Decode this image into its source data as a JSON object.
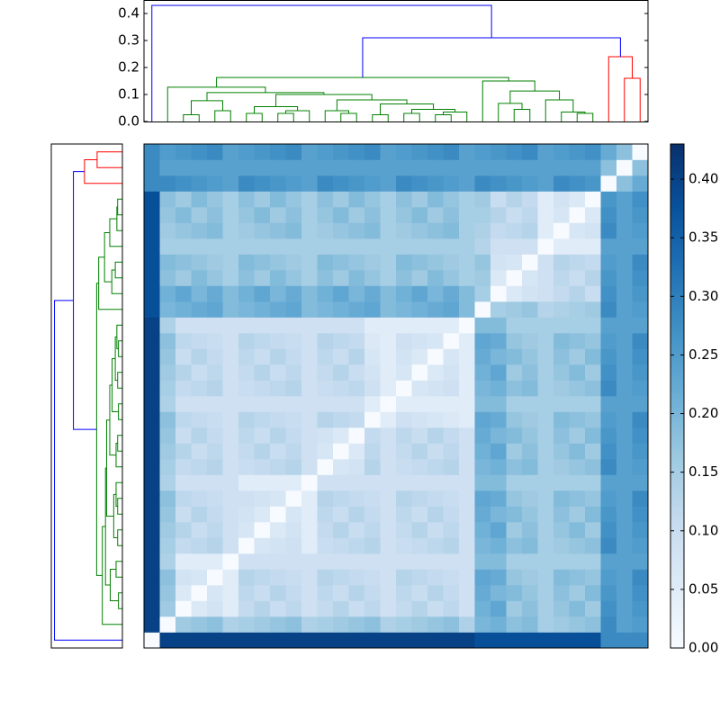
{
  "chart_data": {
    "type": "heatmap",
    "cmap": "Blues",
    "clim": [
      0,
      0.43
    ],
    "colorbar_ticks": [
      {
        "value": 0,
        "label": "0.00"
      },
      0.05,
      {
        "value": 0.1,
        "label": "0.10"
      },
      0.15,
      {
        "value": 0.2,
        "label": "0.20"
      },
      0.25,
      {
        "value": 0.3,
        "label": "0.30"
      },
      0.35,
      {
        "value": 0.4,
        "label": "0.40"
      }
    ],
    "dendrogram": {
      "ylim": [
        0,
        0.45
      ],
      "yticks": [
        {
          "value": 0,
          "label": "0.0"
        },
        0.1,
        0.2,
        0.3,
        0.4
      ],
      "linkage": [
        {
          "left": 2,
          "right": 3,
          "height": 0.025,
          "color": "#008000"
        },
        {
          "left": 4,
          "right": 5,
          "height": 0.04,
          "color": "#008000"
        },
        {
          "left": 32,
          "right": 33,
          "height": 0.077,
          "color": "#008000"
        },
        {
          "left": 6,
          "right": 7,
          "height": 0.03,
          "color": "#008000"
        },
        {
          "left": 8,
          "right": 9,
          "height": 0.03,
          "color": "#008000"
        },
        {
          "left": 36,
          "right": 10,
          "height": 0.04,
          "color": "#008000"
        },
        {
          "left": 35,
          "right": 37,
          "height": 0.055,
          "color": "#008000"
        },
        {
          "left": 12,
          "right": 13,
          "height": 0.03,
          "color": "#008000"
        },
        {
          "left": 11,
          "right": 39,
          "height": 0.04,
          "color": "#008000"
        },
        {
          "left": 14,
          "right": 15,
          "height": 0.025,
          "color": "#008000"
        },
        {
          "left": 16,
          "right": 17,
          "height": 0.03,
          "color": "#008000"
        },
        {
          "left": 18,
          "right": 19,
          "height": 0.025,
          "color": "#008000"
        },
        {
          "left": 43,
          "right": 20,
          "height": 0.035,
          "color": "#008000"
        },
        {
          "left": 42,
          "right": 44,
          "height": 0.045,
          "color": "#008000"
        },
        {
          "left": 41,
          "right": 45,
          "height": 0.065,
          "color": "#008000"
        },
        {
          "left": 40,
          "right": 46,
          "height": 0.08,
          "color": "#008000"
        },
        {
          "left": 38,
          "right": 47,
          "height": 0.1,
          "color": "#008000"
        },
        {
          "left": 34,
          "right": 48,
          "height": 0.107,
          "color": "#008000"
        },
        {
          "left": 1,
          "right": 49,
          "height": 0.127,
          "color": "#008000"
        },
        {
          "left": 23,
          "right": 24,
          "height": 0.045,
          "color": "#008000"
        },
        {
          "left": 22,
          "right": 51,
          "height": 0.067,
          "color": "#008000"
        },
        {
          "left": 27,
          "right": 28,
          "height": 0.03,
          "color": "#008000"
        },
        {
          "left": 26,
          "right": 53,
          "height": 0.035,
          "color": "#008000"
        },
        {
          "left": 25,
          "right": 54,
          "height": 0.08,
          "color": "#008000"
        },
        {
          "left": 52,
          "right": 55,
          "height": 0.113,
          "color": "#008000"
        },
        {
          "left": 21,
          "right": 56,
          "height": 0.15,
          "color": "#008000"
        },
        {
          "left": 50,
          "right": 57,
          "height": 0.163,
          "color": "#008000"
        },
        {
          "left": 30,
          "right": 31,
          "height": 0.16,
          "color": "#ff0000"
        },
        {
          "left": 29,
          "right": 59,
          "height": 0.24,
          "color": "#ff0000"
        },
        {
          "left": 58,
          "right": 60,
          "height": 0.31,
          "color": "#0000ff"
        },
        {
          "left": 0,
          "right": 61,
          "height": 0.43,
          "color": "#0000ff"
        }
      ]
    },
    "matrix": [
      [
        0,
        0.4,
        0.4,
        0.4,
        0.4,
        0.4,
        0.4,
        0.4,
        0.4,
        0.4,
        0.4,
        0.4,
        0.4,
        0.4,
        0.4,
        0.4,
        0.4,
        0.4,
        0.4,
        0.4,
        0.4,
        0.38,
        0.38,
        0.38,
        0.38,
        0.38,
        0.38,
        0.38,
        0.38,
        0.28,
        0.28,
        0.28
      ],
      [
        0.4,
        0,
        0.16,
        0.17,
        0.18,
        0.14,
        0.15,
        0.16,
        0.17,
        0.18,
        0.14,
        0.15,
        0.16,
        0.17,
        0.18,
        0.14,
        0.15,
        0.16,
        0.17,
        0.18,
        0.14,
        0.2,
        0.21,
        0.18,
        0.19,
        0.15,
        0.16,
        0.17,
        0.18,
        0.28,
        0.24,
        0.25
      ],
      [
        0.4,
        0.16,
        0,
        0.06,
        0.08,
        0.05,
        0.11,
        0.13,
        0.1,
        0.12,
        0.09,
        0.11,
        0.13,
        0.1,
        0.12,
        0.09,
        0.11,
        0.13,
        0.1,
        0.12,
        0.09,
        0.21,
        0.23,
        0.16,
        0.18,
        0.15,
        0.17,
        0.19,
        0.16,
        0.27,
        0.24,
        0.26
      ],
      [
        0.4,
        0.17,
        0.06,
        0,
        0.07,
        0.05,
        0.12,
        0.1,
        0.13,
        0.11,
        0.09,
        0.12,
        0.1,
        0.13,
        0.11,
        0.09,
        0.12,
        0.1,
        0.13,
        0.11,
        0.09,
        0.22,
        0.2,
        0.19,
        0.17,
        0.15,
        0.18,
        0.16,
        0.19,
        0.26,
        0.24,
        0.27
      ],
      [
        0.4,
        0.18,
        0.08,
        0.07,
        0,
        0.05,
        0.13,
        0.12,
        0.11,
        0.1,
        0.09,
        0.13,
        0.12,
        0.11,
        0.1,
        0.09,
        0.13,
        0.12,
        0.11,
        0.1,
        0.09,
        0.23,
        0.22,
        0.17,
        0.16,
        0.15,
        0.19,
        0.18,
        0.17,
        0.25,
        0.24,
        0.28
      ],
      [
        0.4,
        0.14,
        0.05,
        0.05,
        0.05,
        0,
        0.09,
        0.09,
        0.09,
        0.09,
        0.09,
        0.09,
        0.09,
        0.09,
        0.09,
        0.09,
        0.09,
        0.09,
        0.09,
        0.09,
        0.09,
        0.19,
        0.19,
        0.15,
        0.15,
        0.15,
        0.15,
        0.15,
        0.15,
        0.24,
        0.24,
        0.24
      ],
      [
        0.4,
        0.15,
        0.11,
        0.12,
        0.13,
        0.09,
        0,
        0.07,
        0.08,
        0.09,
        0.05,
        0.1,
        0.11,
        0.12,
        0.13,
        0.09,
        0.1,
        0.11,
        0.12,
        0.13,
        0.09,
        0.2,
        0.21,
        0.18,
        0.19,
        0.15,
        0.16,
        0.17,
        0.18,
        0.28,
        0.24,
        0.25
      ],
      [
        0.4,
        0.16,
        0.13,
        0.1,
        0.12,
        0.09,
        0.07,
        0,
        0.06,
        0.08,
        0.05,
        0.11,
        0.13,
        0.1,
        0.12,
        0.09,
        0.11,
        0.13,
        0.1,
        0.12,
        0.09,
        0.21,
        0.23,
        0.16,
        0.18,
        0.15,
        0.17,
        0.19,
        0.16,
        0.27,
        0.24,
        0.26
      ],
      [
        0.4,
        0.17,
        0.1,
        0.13,
        0.11,
        0.09,
        0.08,
        0.06,
        0,
        0.07,
        0.05,
        0.12,
        0.1,
        0.13,
        0.11,
        0.09,
        0.12,
        0.1,
        0.13,
        0.11,
        0.09,
        0.22,
        0.2,
        0.19,
        0.17,
        0.15,
        0.18,
        0.16,
        0.19,
        0.26,
        0.24,
        0.27
      ],
      [
        0.4,
        0.18,
        0.12,
        0.11,
        0.1,
        0.09,
        0.09,
        0.08,
        0.07,
        0,
        0.05,
        0.13,
        0.12,
        0.11,
        0.1,
        0.09,
        0.13,
        0.12,
        0.11,
        0.1,
        0.09,
        0.23,
        0.22,
        0.17,
        0.16,
        0.15,
        0.19,
        0.18,
        0.17,
        0.25,
        0.24,
        0.28
      ],
      [
        0.4,
        0.14,
        0.09,
        0.09,
        0.09,
        0.09,
        0.05,
        0.05,
        0.05,
        0.05,
        0,
        0.09,
        0.09,
        0.09,
        0.09,
        0.09,
        0.09,
        0.09,
        0.09,
        0.09,
        0.09,
        0.19,
        0.19,
        0.15,
        0.15,
        0.15,
        0.15,
        0.15,
        0.15,
        0.24,
        0.24,
        0.24
      ],
      [
        0.4,
        0.15,
        0.11,
        0.12,
        0.13,
        0.09,
        0.1,
        0.11,
        0.12,
        0.13,
        0.09,
        0,
        0.07,
        0.08,
        0.13,
        0.09,
        0.1,
        0.11,
        0.12,
        0.13,
        0.09,
        0.2,
        0.21,
        0.18,
        0.19,
        0.15,
        0.16,
        0.17,
        0.18,
        0.28,
        0.24,
        0.25
      ],
      [
        0.4,
        0.16,
        0.13,
        0.1,
        0.12,
        0.09,
        0.11,
        0.13,
        0.1,
        0.12,
        0.09,
        0.07,
        0,
        0.06,
        0.12,
        0.09,
        0.11,
        0.13,
        0.1,
        0.12,
        0.09,
        0.21,
        0.23,
        0.16,
        0.18,
        0.15,
        0.17,
        0.19,
        0.16,
        0.27,
        0.24,
        0.26
      ],
      [
        0.4,
        0.17,
        0.1,
        0.13,
        0.11,
        0.09,
        0.12,
        0.1,
        0.13,
        0.11,
        0.09,
        0.08,
        0.06,
        0,
        0.11,
        0.09,
        0.12,
        0.1,
        0.13,
        0.11,
        0.09,
        0.22,
        0.2,
        0.19,
        0.17,
        0.15,
        0.18,
        0.16,
        0.19,
        0.26,
        0.24,
        0.27
      ],
      [
        0.4,
        0.18,
        0.12,
        0.11,
        0.1,
        0.09,
        0.13,
        0.12,
        0.11,
        0.1,
        0.09,
        0.13,
        0.12,
        0.11,
        0,
        0.05,
        0.09,
        0.08,
        0.07,
        0.06,
        0.05,
        0.23,
        0.22,
        0.17,
        0.16,
        0.15,
        0.19,
        0.18,
        0.17,
        0.25,
        0.24,
        0.28
      ],
      [
        0.4,
        0.14,
        0.09,
        0.09,
        0.09,
        0.09,
        0.09,
        0.09,
        0.09,
        0.09,
        0.09,
        0.09,
        0.09,
        0.09,
        0.05,
        0,
        0.05,
        0.05,
        0.05,
        0.05,
        0.05,
        0.19,
        0.19,
        0.15,
        0.15,
        0.15,
        0.15,
        0.15,
        0.15,
        0.24,
        0.24,
        0.24
      ],
      [
        0.4,
        0.15,
        0.11,
        0.12,
        0.13,
        0.09,
        0.1,
        0.11,
        0.12,
        0.13,
        0.09,
        0.1,
        0.11,
        0.12,
        0.09,
        0.05,
        0,
        0.07,
        0.08,
        0.09,
        0.05,
        0.2,
        0.21,
        0.18,
        0.19,
        0.15,
        0.16,
        0.17,
        0.18,
        0.28,
        0.24,
        0.25
      ],
      [
        0.4,
        0.16,
        0.13,
        0.1,
        0.12,
        0.09,
        0.11,
        0.13,
        0.1,
        0.12,
        0.09,
        0.11,
        0.13,
        0.1,
        0.08,
        0.05,
        0.07,
        0,
        0.06,
        0.08,
        0.05,
        0.21,
        0.23,
        0.16,
        0.18,
        0.15,
        0.17,
        0.19,
        0.16,
        0.27,
        0.24,
        0.26
      ],
      [
        0.4,
        0.17,
        0.1,
        0.13,
        0.11,
        0.09,
        0.12,
        0.1,
        0.13,
        0.11,
        0.09,
        0.12,
        0.1,
        0.13,
        0.07,
        0.05,
        0.08,
        0.06,
        0,
        0.07,
        0.05,
        0.22,
        0.2,
        0.19,
        0.17,
        0.15,
        0.18,
        0.16,
        0.19,
        0.26,
        0.24,
        0.27
      ],
      [
        0.4,
        0.18,
        0.12,
        0.11,
        0.1,
        0.09,
        0.13,
        0.12,
        0.11,
        0.1,
        0.09,
        0.13,
        0.12,
        0.11,
        0.06,
        0.05,
        0.09,
        0.08,
        0.07,
        0,
        0.05,
        0.23,
        0.22,
        0.17,
        0.16,
        0.15,
        0.19,
        0.18,
        0.17,
        0.25,
        0.24,
        0.28
      ],
      [
        0.4,
        0.14,
        0.09,
        0.09,
        0.09,
        0.09,
        0.09,
        0.09,
        0.09,
        0.09,
        0.09,
        0.09,
        0.09,
        0.09,
        0.05,
        0.05,
        0.05,
        0.05,
        0.05,
        0.05,
        0,
        0.19,
        0.19,
        0.15,
        0.15,
        0.15,
        0.15,
        0.15,
        0.15,
        0.24,
        0.24,
        0.24
      ],
      [
        0.38,
        0.2,
        0.21,
        0.22,
        0.23,
        0.19,
        0.2,
        0.21,
        0.22,
        0.23,
        0.19,
        0.2,
        0.21,
        0.22,
        0.23,
        0.19,
        0.2,
        0.21,
        0.22,
        0.23,
        0.19,
        0,
        0.15,
        0.16,
        0.17,
        0.13,
        0.14,
        0.15,
        0.16,
        0.28,
        0.24,
        0.25
      ],
      [
        0.38,
        0.21,
        0.23,
        0.2,
        0.22,
        0.19,
        0.21,
        0.23,
        0.2,
        0.22,
        0.19,
        0.21,
        0.23,
        0.2,
        0.22,
        0.19,
        0.21,
        0.23,
        0.2,
        0.22,
        0.19,
        0.15,
        0,
        0.06,
        0.08,
        0.09,
        0.11,
        0.13,
        0.1,
        0.27,
        0.24,
        0.26
      ],
      [
        0.38,
        0.18,
        0.16,
        0.19,
        0.17,
        0.15,
        0.18,
        0.16,
        0.19,
        0.17,
        0.15,
        0.18,
        0.16,
        0.19,
        0.17,
        0.15,
        0.18,
        0.16,
        0.19,
        0.17,
        0.15,
        0.16,
        0.06,
        0,
        0.07,
        0.09,
        0.12,
        0.1,
        0.13,
        0.26,
        0.24,
        0.27
      ],
      [
        0.38,
        0.19,
        0.18,
        0.17,
        0.16,
        0.15,
        0.19,
        0.18,
        0.17,
        0.16,
        0.15,
        0.19,
        0.18,
        0.17,
        0.16,
        0.15,
        0.19,
        0.18,
        0.17,
        0.16,
        0.15,
        0.17,
        0.08,
        0.07,
        0,
        0.09,
        0.13,
        0.12,
        0.11,
        0.25,
        0.24,
        0.28
      ],
      [
        0.38,
        0.15,
        0.15,
        0.15,
        0.15,
        0.15,
        0.15,
        0.15,
        0.15,
        0.15,
        0.15,
        0.15,
        0.15,
        0.15,
        0.15,
        0.15,
        0.15,
        0.15,
        0.15,
        0.15,
        0.15,
        0.13,
        0.09,
        0.09,
        0.09,
        0,
        0.05,
        0.05,
        0.05,
        0.24,
        0.24,
        0.24
      ],
      [
        0.38,
        0.16,
        0.17,
        0.18,
        0.19,
        0.15,
        0.16,
        0.17,
        0.18,
        0.19,
        0.15,
        0.16,
        0.17,
        0.18,
        0.19,
        0.15,
        0.16,
        0.17,
        0.18,
        0.19,
        0.15,
        0.14,
        0.11,
        0.12,
        0.13,
        0.05,
        0,
        0.07,
        0.08,
        0.28,
        0.24,
        0.25
      ],
      [
        0.38,
        0.17,
        0.19,
        0.16,
        0.18,
        0.15,
        0.17,
        0.19,
        0.16,
        0.18,
        0.15,
        0.17,
        0.19,
        0.16,
        0.18,
        0.15,
        0.17,
        0.19,
        0.16,
        0.18,
        0.15,
        0.15,
        0.13,
        0.1,
        0.12,
        0.05,
        0.07,
        0,
        0.06,
        0.27,
        0.24,
        0.26
      ],
      [
        0.38,
        0.18,
        0.16,
        0.19,
        0.17,
        0.15,
        0.18,
        0.16,
        0.19,
        0.17,
        0.15,
        0.18,
        0.16,
        0.19,
        0.17,
        0.15,
        0.18,
        0.16,
        0.19,
        0.17,
        0.15,
        0.16,
        0.1,
        0.13,
        0.11,
        0.05,
        0.08,
        0.06,
        0,
        0.26,
        0.24,
        0.27
      ],
      [
        0.28,
        0.28,
        0.27,
        0.26,
        0.25,
        0.24,
        0.28,
        0.27,
        0.26,
        0.25,
        0.24,
        0.28,
        0.27,
        0.26,
        0.25,
        0.24,
        0.28,
        0.27,
        0.26,
        0.25,
        0.24,
        0.28,
        0.27,
        0.26,
        0.25,
        0.24,
        0.28,
        0.27,
        0.26,
        0,
        0.18,
        0.22
      ],
      [
        0.28,
        0.24,
        0.24,
        0.24,
        0.24,
        0.24,
        0.24,
        0.24,
        0.24,
        0.24,
        0.24,
        0.24,
        0.24,
        0.24,
        0.24,
        0.24,
        0.24,
        0.24,
        0.24,
        0.24,
        0.24,
        0.24,
        0.24,
        0.24,
        0.24,
        0.24,
        0.24,
        0.24,
        0.24,
        0.18,
        0,
        0.18
      ],
      [
        0.28,
        0.25,
        0.26,
        0.27,
        0.28,
        0.24,
        0.25,
        0.26,
        0.27,
        0.28,
        0.24,
        0.25,
        0.26,
        0.27,
        0.28,
        0.24,
        0.25,
        0.26,
        0.27,
        0.28,
        0.24,
        0.25,
        0.26,
        0.27,
        0.28,
        0.24,
        0.25,
        0.26,
        0.27,
        0.22,
        0.18,
        0
      ]
    ]
  }
}
